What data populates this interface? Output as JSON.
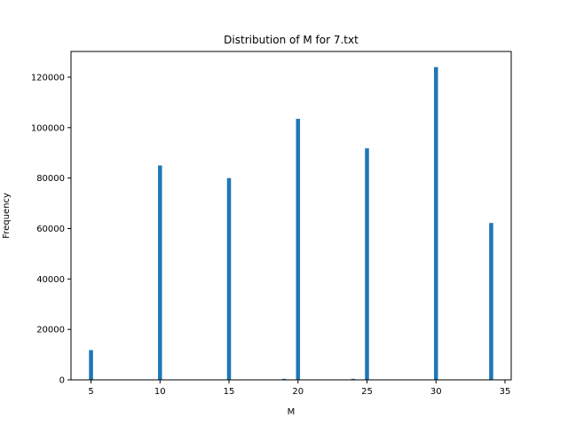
{
  "chart_data": {
    "type": "bar",
    "title": "Distribution of M for 7.txt",
    "xlabel": "M",
    "ylabel": "Frequency",
    "xlim": [
      3.55,
      35.45
    ],
    "ylim": [
      0,
      130200
    ],
    "xticks": [
      5,
      10,
      15,
      20,
      25,
      30,
      35
    ],
    "yticks": [
      0,
      20000,
      40000,
      60000,
      80000,
      100000,
      120000
    ],
    "bin_width": 0.29,
    "bars": [
      {
        "x": 5,
        "value": 11800
      },
      {
        "x": 10,
        "value": 85000
      },
      {
        "x": 15,
        "value": 80000
      },
      {
        "x": 19,
        "value": 400
      },
      {
        "x": 20,
        "value": 103500
      },
      {
        "x": 24,
        "value": 400
      },
      {
        "x": 25,
        "value": 91800
      },
      {
        "x": 30,
        "value": 124000
      },
      {
        "x": 34,
        "value": 62200
      }
    ],
    "bar_color": "#1f77b4",
    "grid": false,
    "legend": "none"
  }
}
